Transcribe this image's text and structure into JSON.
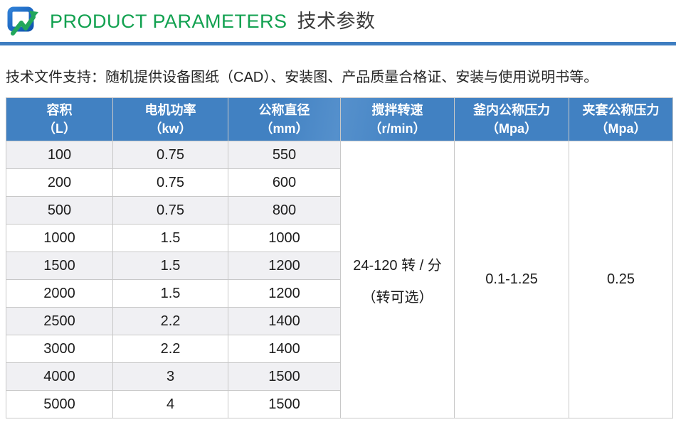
{
  "header": {
    "logo_icon": "monitor-zigzag-logo",
    "title_en": "PRODUCT PARAMETERS",
    "title_zh": "技术参数"
  },
  "support_note": "技术文件支持：随机提供设备图纸（CAD）、安装图、产品质量合格证、安装与使用说明书等。",
  "colors": {
    "accent_green": "#12A150",
    "title_dark": "#3A3A3A",
    "divider_blue": "#3E7EC1",
    "table_header_blue": "#4181C2",
    "stripe_gray": "#F0F0F3",
    "border_gray": "#C8C8C8",
    "logo_blue": "#1E6BC8",
    "logo_green": "#21A65B"
  },
  "table": {
    "columns": [
      {
        "label": "容积",
        "unit": "（L）"
      },
      {
        "label": "电机功率",
        "unit": "（kw）"
      },
      {
        "label": "公称直径",
        "unit": "（mm）"
      },
      {
        "label": "搅拌转速",
        "unit": "（r/min）"
      },
      {
        "label": "釜内公称压力",
        "unit": "（Mpa）"
      },
      {
        "label": "夹套公称压力",
        "unit": "（Mpa）"
      }
    ],
    "rows": [
      [
        "100",
        "0.75",
        "550"
      ],
      [
        "200",
        "0.75",
        "600"
      ],
      [
        "500",
        "0.75",
        "800"
      ],
      [
        "1000",
        "1.5",
        "1000"
      ],
      [
        "1500",
        "1.5",
        "1200"
      ],
      [
        "2000",
        "1.5",
        "1200"
      ],
      [
        "2500",
        "2.2",
        "1400"
      ],
      [
        "3000",
        "2.2",
        "1400"
      ],
      [
        "4000",
        "3",
        "1500"
      ],
      [
        "5000",
        "4",
        "1500"
      ]
    ],
    "merged": {
      "stir_speed_line1": "24-120 转 / 分",
      "stir_speed_line2": "（转可选）",
      "kettle_pressure": "0.1-1.25",
      "jacket_pressure": "0.25"
    }
  }
}
